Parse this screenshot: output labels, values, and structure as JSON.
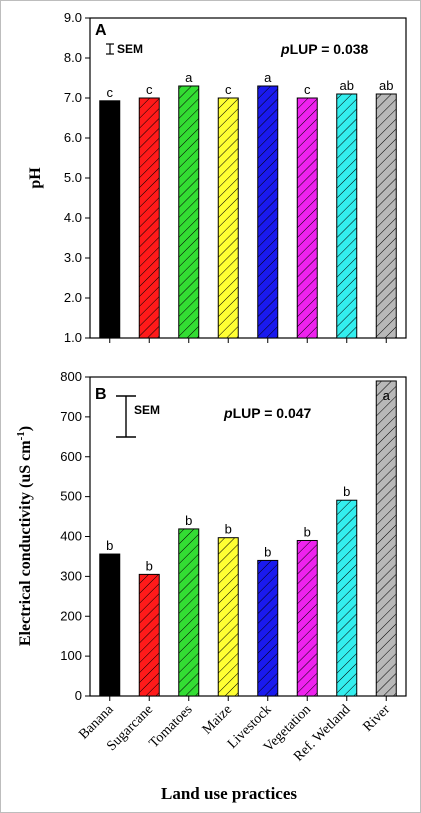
{
  "chart_data": [
    {
      "type": "bar",
      "panel_label": "A",
      "stat_prefix": "p",
      "stat_text": "LUP = 0.038",
      "sem_label": "SEM",
      "ylabel": "pH",
      "ylim": [
        1.0,
        9.0
      ],
      "yticks": [
        "1.0",
        "2.0",
        "3.0",
        "4.0",
        "5.0",
        "6.0",
        "7.0",
        "8.0",
        "9.0"
      ],
      "categories": [
        "Banana",
        "Sugarcane",
        "Tomatoes",
        "Maize",
        "Livestock",
        "Vegetation",
        "Ref. Wetland",
        "River"
      ],
      "values": [
        6.93,
        7.0,
        7.3,
        7.0,
        7.3,
        7.0,
        7.1,
        7.1
      ],
      "letters": [
        "c",
        "c",
        "a",
        "c",
        "a",
        "c",
        "ab",
        "ab"
      ],
      "colors": [
        "#000000",
        "#ff1a1a",
        "#33dd33",
        "#ffff33",
        "#1a1aee",
        "#ee22ee",
        "#33eeee",
        "#b8b8b8"
      ]
    },
    {
      "type": "bar",
      "panel_label": "B",
      "stat_prefix": "p",
      "stat_text": "LUP = 0.047",
      "sem_label": "SEM",
      "ylabel_main": "Electrical conductivity (uS cm",
      "ylabel_sup": "-1",
      "ylabel_close": ")",
      "ylim": [
        0,
        800
      ],
      "yticks": [
        "0",
        "100",
        "200",
        "300",
        "400",
        "500",
        "600",
        "700",
        "800"
      ],
      "categories": [
        "Banana",
        "Sugarcane",
        "Tomatoes",
        "Maize",
        "Livestock",
        "Vegetation",
        "Ref. Wetland",
        "River"
      ],
      "values": [
        356,
        305,
        419,
        397,
        340,
        390,
        491,
        790
      ],
      "letters": [
        "b",
        "b",
        "b",
        "b",
        "b",
        "b",
        "b",
        "a"
      ],
      "colors": [
        "#000000",
        "#ff1a1a",
        "#33dd33",
        "#ffff33",
        "#1a1aee",
        "#ee22ee",
        "#33eeee",
        "#b8b8b8"
      ],
      "xlabel": "Land use practices"
    }
  ]
}
